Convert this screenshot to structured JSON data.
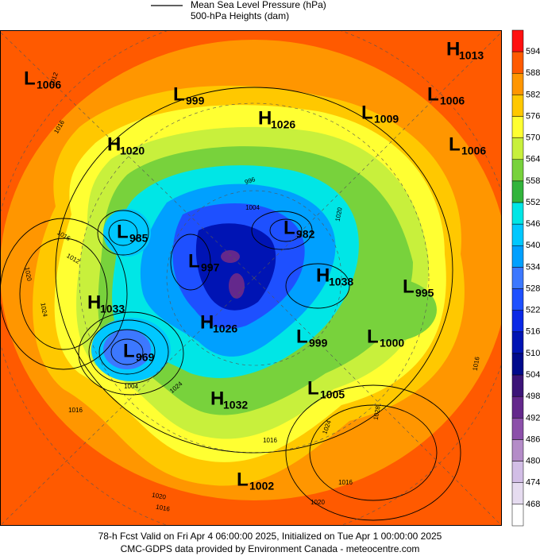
{
  "legend": {
    "line1": "Mean Sea Level Pressure (hPa)",
    "line2": "500-hPa Heights (dam)"
  },
  "centers": [
    {
      "type": "L",
      "value": 1006
    },
    {
      "type": "L",
      "value": 999
    },
    {
      "type": "H",
      "value": 1026
    },
    {
      "type": "L",
      "value": 1009
    },
    {
      "type": "H",
      "value": 1013
    },
    {
      "type": "L",
      "value": 1006
    },
    {
      "type": "L",
      "value": 1006
    },
    {
      "type": "H",
      "value": 1020
    },
    {
      "type": "L",
      "value": 985
    },
    {
      "type": "L",
      "value": 982
    },
    {
      "type": "L",
      "value": 997
    },
    {
      "type": "H",
      "value": 1038
    },
    {
      "type": "L",
      "value": 995
    },
    {
      "type": "H",
      "value": 1033
    },
    {
      "type": "L",
      "value": 969
    },
    {
      "type": "H",
      "value": 1026
    },
    {
      "type": "L",
      "value": 999
    },
    {
      "type": "L",
      "value": 1000
    },
    {
      "type": "L",
      "value": 1005
    },
    {
      "type": "H",
      "value": 1032
    },
    {
      "type": "L",
      "value": 1002
    }
  ],
  "isobar_labels": [
    1012,
    1016,
    1016,
    1012,
    1020,
    1024,
    1004,
    1016,
    1024,
    1016,
    1020,
    1016,
    1020,
    1016,
    1028,
    1024,
    1016,
    1020,
    996,
    1004
  ],
  "colorbar": {
    "ticks": [
      594,
      588,
      582,
      576,
      570,
      564,
      558,
      552,
      546,
      540,
      534,
      528,
      522,
      516,
      510,
      504,
      498,
      492,
      486,
      480,
      474,
      468
    ],
    "colors": [
      "#ff1010",
      "#ff5a00",
      "#ff9600",
      "#ffc800",
      "#ffff32",
      "#c8f03c",
      "#78d23c",
      "#32b43c",
      "#00e6e6",
      "#00c8ff",
      "#00a0ff",
      "#3c78ff",
      "#1e50ff",
      "#0a28e6",
      "#0014b4",
      "#000a8c",
      "#3c1478",
      "#64288c",
      "#8c50aa",
      "#b48cc8",
      "#d2bee6",
      "#e6dcf0",
      "#ffffff"
    ]
  },
  "footer": {
    "line1": "78-h Fcst Valid on Fri Apr  4 06:00:00 2025, Initialized on Tue Apr  1 00:00:00 2025",
    "line2": "CMC-GDPS data provided by Environment Canada - meteocentre.com"
  }
}
